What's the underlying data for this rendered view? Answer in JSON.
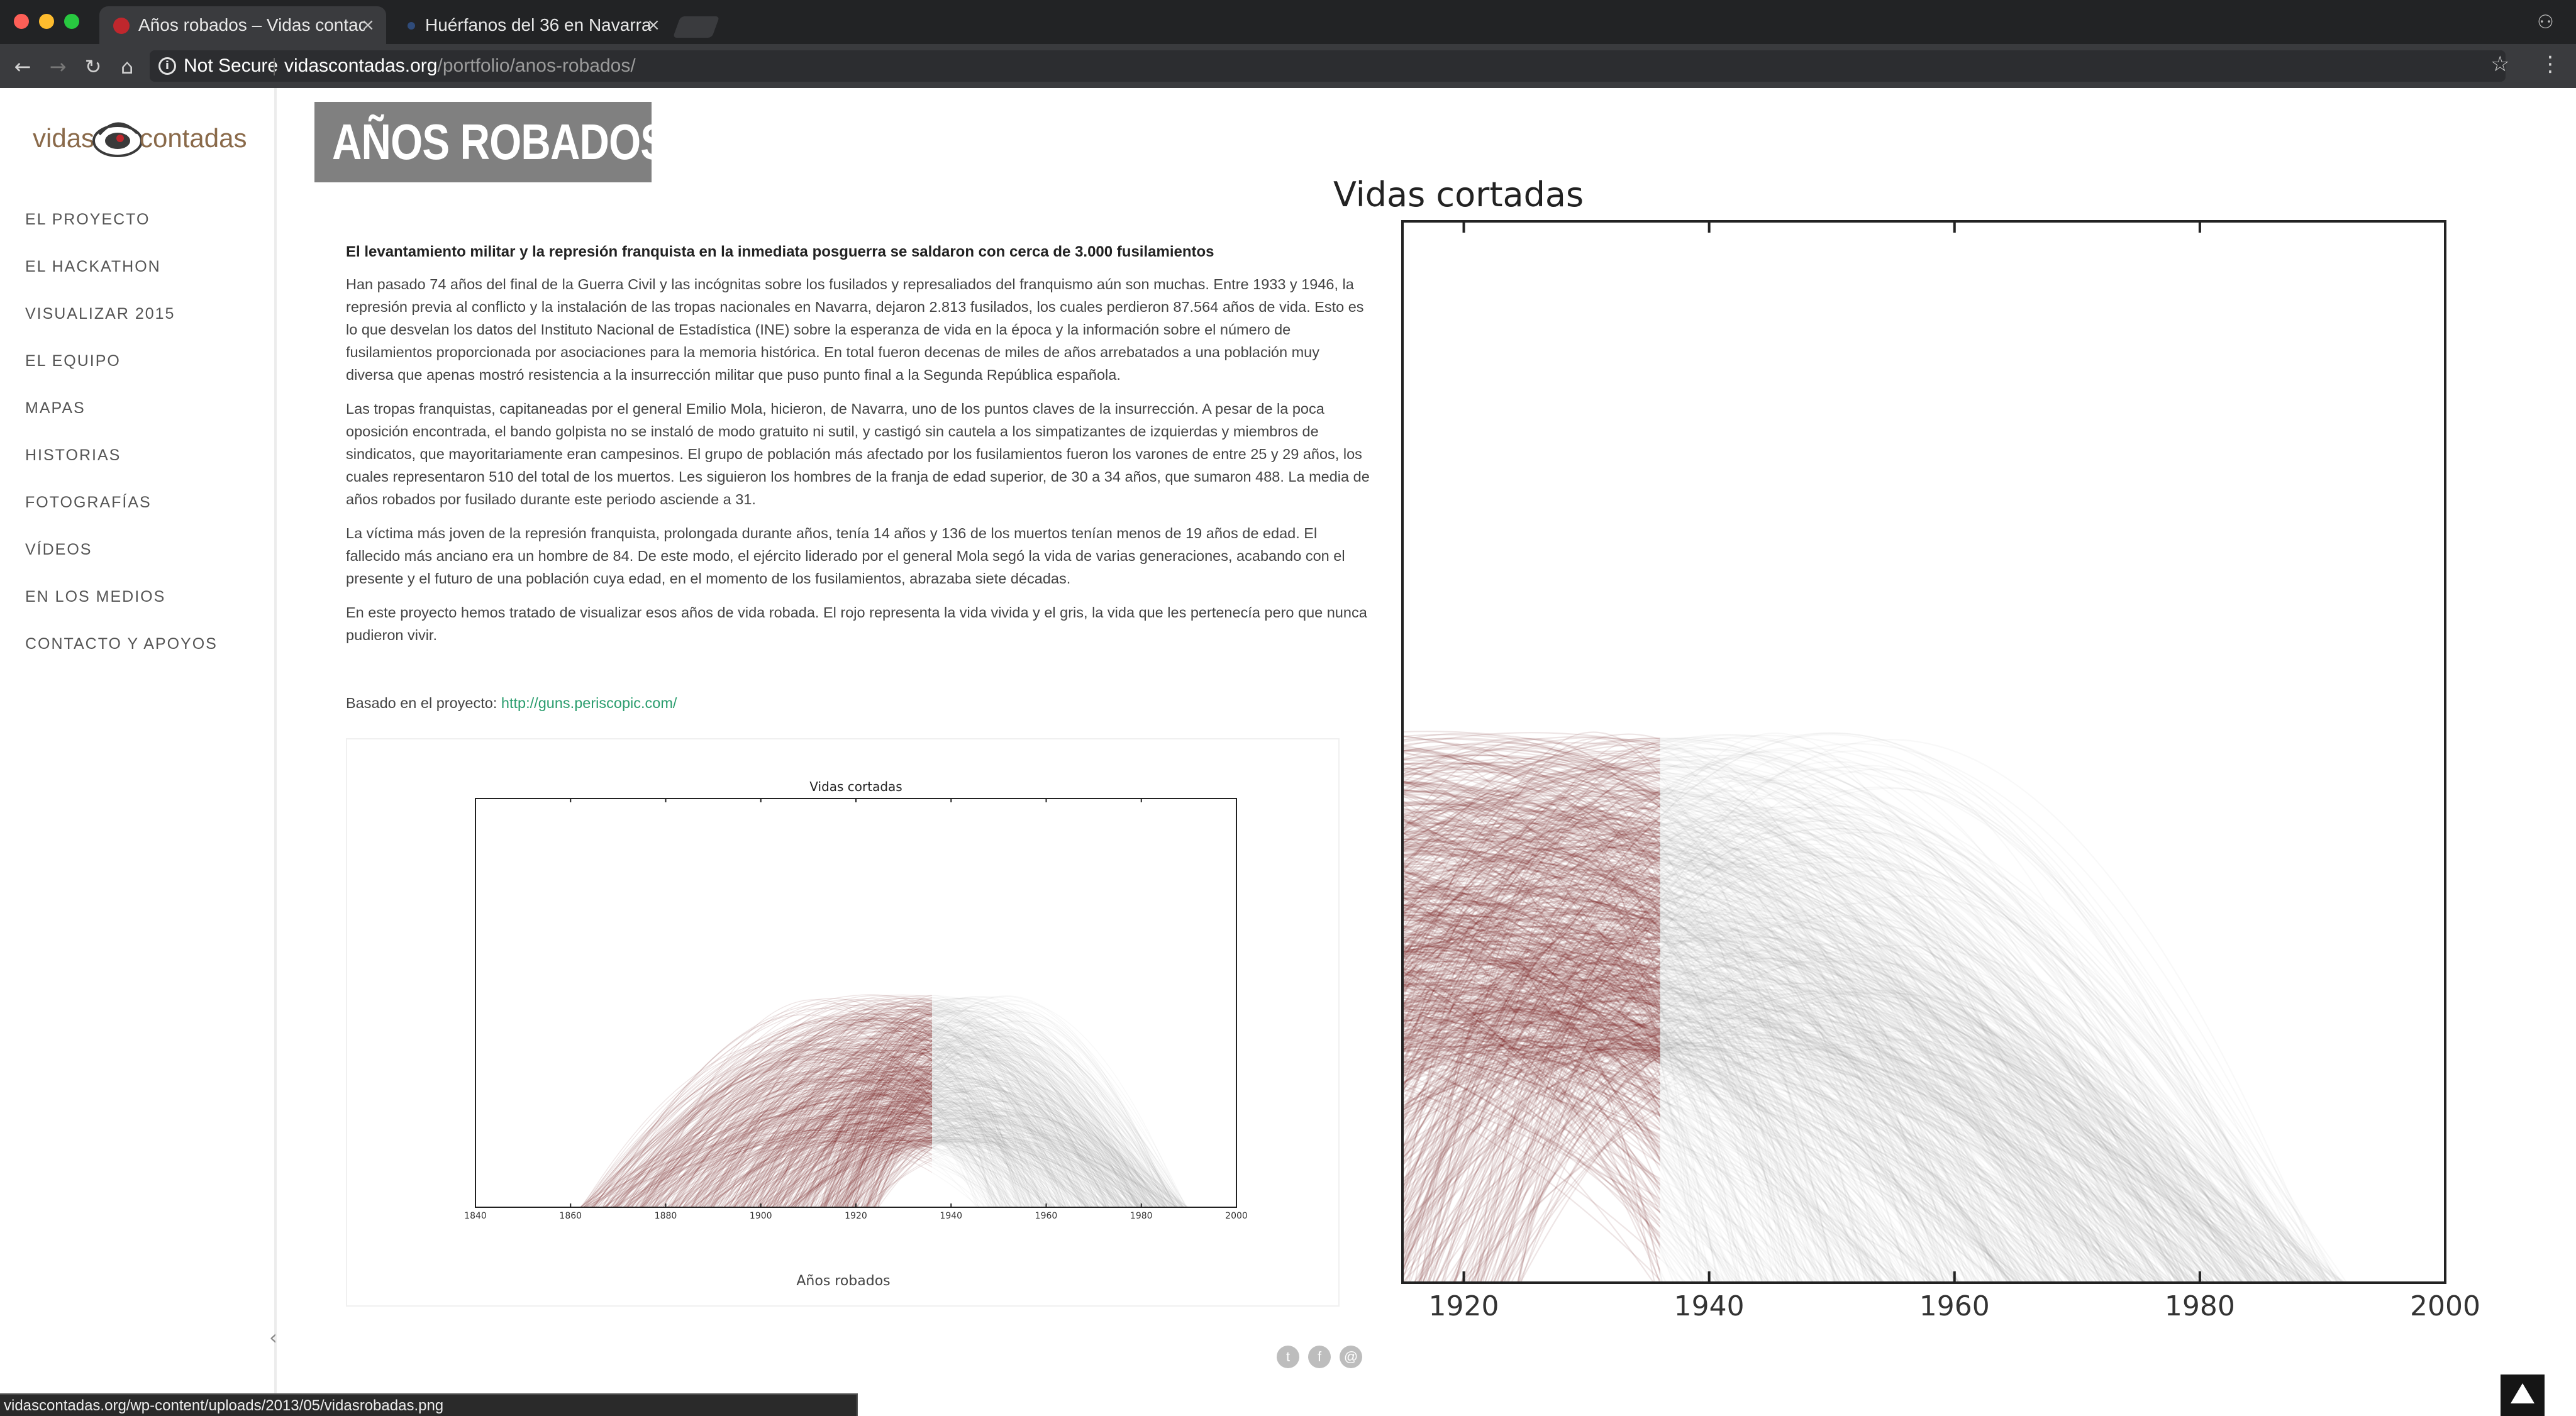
{
  "browser": {
    "tabs": [
      {
        "title": "Años robados – Vidas contadas",
        "active": true
      },
      {
        "title": "Huérfanos del 36 en Navarra",
        "active": false
      }
    ],
    "security_label": "Not Secure",
    "url_domain": "vidascontadas.org",
    "url_path": "/portfolio/anos-robados/",
    "status_url": "vidascontadas.org/wp-content/uploads/2013/05/vidasrobadas.png"
  },
  "logo": {
    "word1": "vidas",
    "word2": "contadas"
  },
  "sidebar": {
    "items": [
      {
        "label": "EL PROYECTO"
      },
      {
        "label": "EL HACKATHON"
      },
      {
        "label": "VISUALIZAR 2015"
      },
      {
        "label": "EL EQUIPO"
      },
      {
        "label": "MAPAS"
      },
      {
        "label": "HISTORIAS"
      },
      {
        "label": "FOTOGRAFÍAS"
      },
      {
        "label": "VÍDEOS"
      },
      {
        "label": "EN LOS MEDIOS"
      },
      {
        "label": "CONTACTO Y APOYOS"
      }
    ]
  },
  "page": {
    "hero_title": "AÑOS ROBADOS",
    "lead": "El levantamiento militar y la represión franquista en la inmediata posguerra se saldaron con cerca de 3.000 fusilamientos",
    "paragraphs": [
      "Han pasado 74 años del final de la Guerra Civil y las incógnitas sobre los fusilados y represaliados del franquismo aún son muchas. Entre 1933 y 1946, la represión previa al conflicto y la instalación de las tropas nacionales en Navarra, dejaron 2.813 fusilados, los cuales perdieron 87.564 años de vida. Esto es lo que desvelan los datos del Instituto Nacional de Estadística (INE) sobre la esperanza de vida en la época y la información sobre el número de fusilamientos proporcionada por asociaciones para la memoria histórica. En total fueron decenas de miles de años arrebatados a una población muy diversa que apenas mostró resistencia a la insurrección militar que puso punto final a la Segunda República española.",
      "Las tropas franquistas, capitaneadas por el general Emilio Mola, hicieron, de Navarra, uno de los puntos claves de la insurrección. A pesar de la poca oposición encontrada, el bando golpista no se instaló de modo gratuito ni sutil, y castigó sin cautela a los simpatizantes de izquierdas y miembros de sindicatos, que mayoritariamente eran campesinos. El grupo de población más afectado por los fusilamientos fueron los varones de entre 25 y 29 años, los cuales representaron 510 del total de los muertos. Les siguieron los hombres de la franja de edad superior, de 30 a 34 años, que sumaron 488. La media de años robados por fusilado durante este periodo asciende a 31.",
      "La víctima más joven de la represión franquista, prolongada durante años, tenía 14 años y 136 de los muertos tenían menos de 19 años de edad. El fallecido más anciano era un hombre de 84. De este modo, el ejército liderado por el general Mola segó la vida de varias generaciones, acabando con el presente y el futuro de una población cuya edad, en el momento de los fusilamientos, abrazaba siete décadas.",
      "En este proyecto hemos tratado de visualizar esos años de vida robada. El rojo representa la vida vivida y el gris, la vida que les pertenecía pero que nunca pudieron vivir."
    ],
    "source_prefix": "Basado en el proyecto: ",
    "source_link": "http://guns.periscopic.com/"
  },
  "colors": {
    "lived": "#8b1a1a",
    "stolen": "#808080",
    "link": "#2a9d6e",
    "hero_bg": "#808080"
  },
  "icons": [
    "back-icon",
    "forward-icon",
    "reload-icon",
    "home-icon",
    "info-icon",
    "star-icon",
    "menu-icon",
    "twitter-icon",
    "facebook-icon",
    "email-icon",
    "collapse-icon",
    "scroll-top-icon"
  ],
  "chart_data": [
    {
      "type": "line",
      "title": "Vidas cortadas",
      "xlabel": "Años robados",
      "xlim": [
        1840,
        2000
      ],
      "xticks": [
        1840,
        1860,
        1880,
        1900,
        1920,
        1940,
        1960,
        1980,
        2000
      ],
      "execution_year_split": 1936,
      "grid": false,
      "series": [
        {
          "name": "",
          "lived_color": "red",
          "stolen_color": "gray"
        }
      ]
    },
    {
      "type": "line",
      "title": "Vidas cortadas",
      "xlabel": "",
      "xlim": [
        1915,
        2000
      ],
      "xticks": [
        1920,
        1940,
        1960,
        1980,
        2000
      ],
      "execution_year_split": 1936,
      "grid": false,
      "series": [
        {
          "name": "",
          "lived_color": "red",
          "stolen_color": "gray"
        }
      ]
    }
  ]
}
